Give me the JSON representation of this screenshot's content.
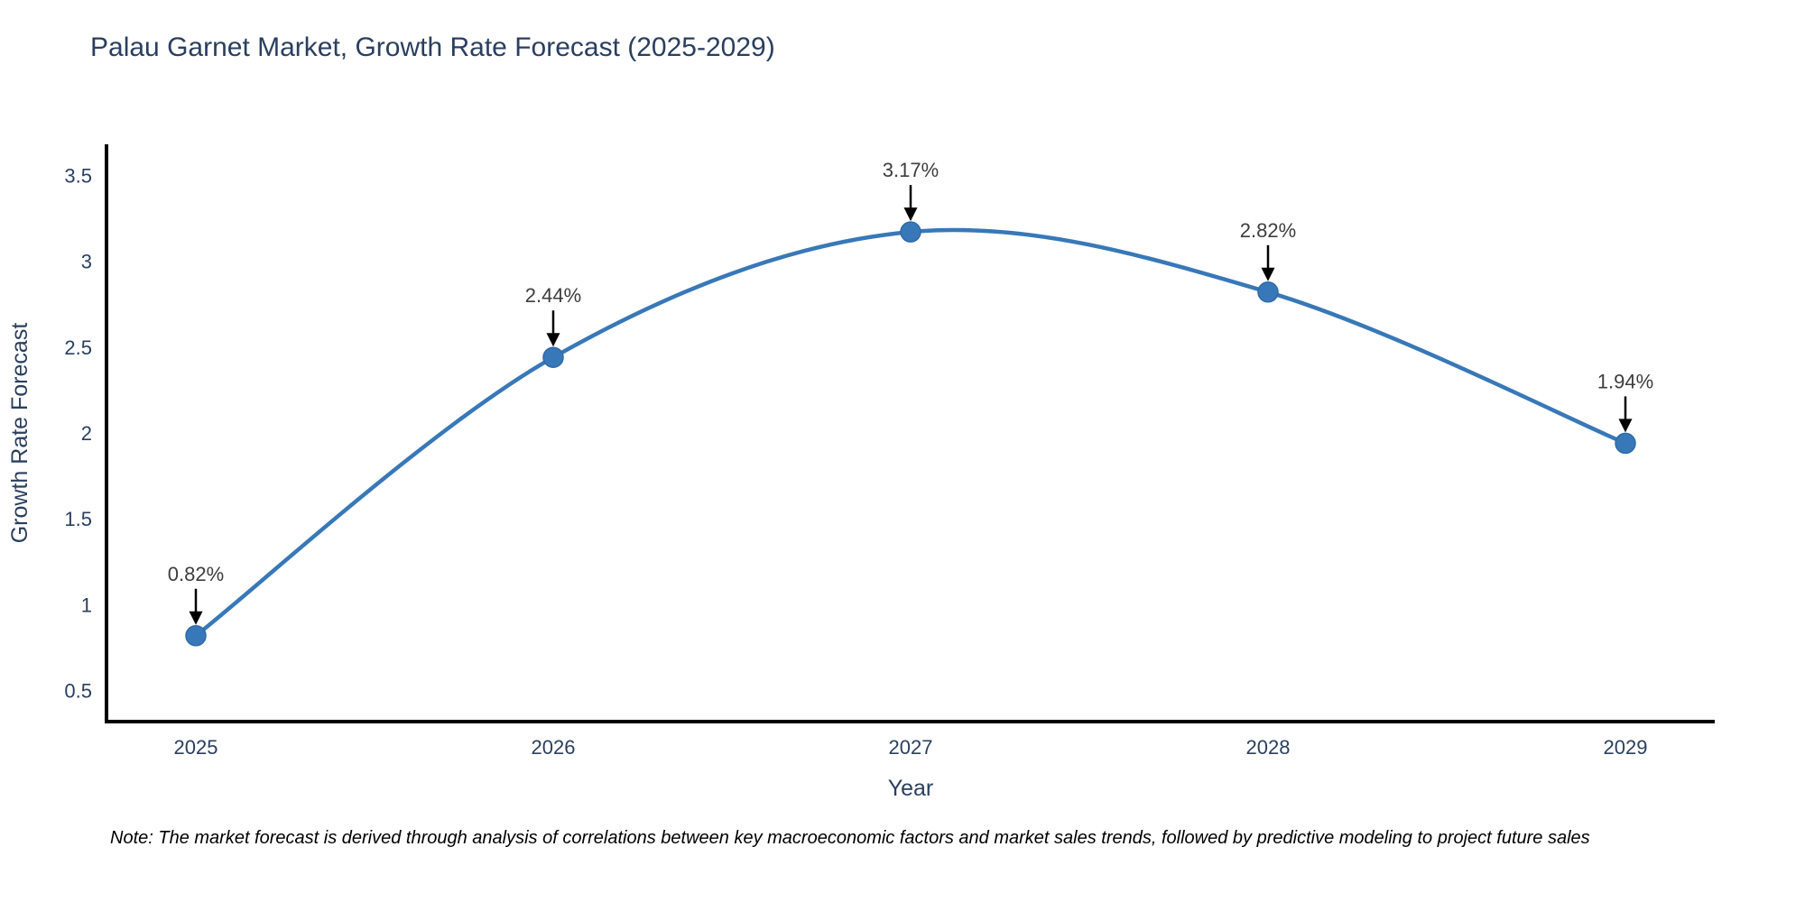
{
  "title": "Palau Garnet Market, Growth Rate Forecast (2025-2029)",
  "note": "Note: The market forecast is derived through analysis of correlations between key macroeconomic factors and market sales trends, followed by predictive modeling to project future sales",
  "chart_data": {
    "type": "line",
    "title": "Palau Garnet Market, Growth Rate Forecast (2025-2029)",
    "xlabel": "Year",
    "ylabel": "Growth Rate Forecast",
    "x": [
      2025,
      2026,
      2027,
      2028,
      2029
    ],
    "series": [
      {
        "name": "Growth Rate Forecast",
        "values": [
          0.82,
          2.44,
          3.17,
          2.82,
          1.94
        ]
      }
    ],
    "point_labels": [
      "0.82%",
      "2.44%",
      "3.17%",
      "2.82%",
      "1.94%"
    ],
    "xticks": [
      "2025",
      "2026",
      "2027",
      "2028",
      "2029"
    ],
    "yticks": [
      "0.5",
      "1",
      "1.5",
      "2",
      "2.5",
      "3",
      "3.5"
    ],
    "ytick_values": [
      0.5,
      1,
      1.5,
      2,
      2.5,
      3,
      3.5
    ],
    "xlim": [
      2024.75,
      2029.25
    ],
    "ylim": [
      0.32,
      3.68
    ],
    "line_shape": "spline",
    "grid": false,
    "legend": false,
    "colors": {
      "line": "#3878b8",
      "marker": "#3878b8",
      "marker_edge": "#2e6aa6",
      "axis": "#000000",
      "tick_text": "#2a3f5f",
      "axis_title_text": "#2a3f5f",
      "annotation_text": "#3d3d3d",
      "annotation_arrow": "#000000",
      "background": "#ffffff"
    }
  }
}
